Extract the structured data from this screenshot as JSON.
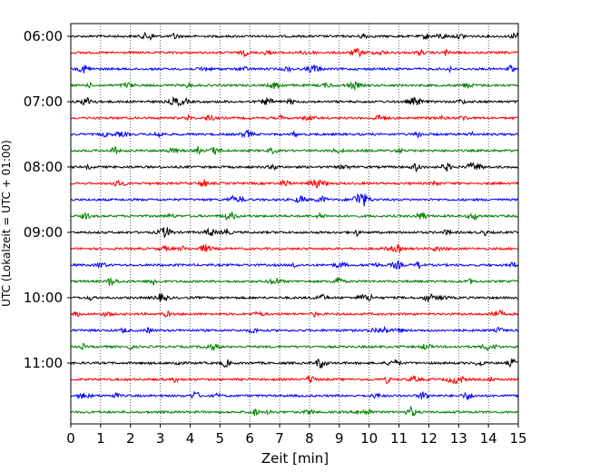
{
  "chart_data": {
    "type": "line",
    "title": "",
    "xlabel": "Zeit  [min]",
    "ylabel": "UTC (Lokalzeit = UTC + 01:00)",
    "xlim": [
      0,
      15
    ],
    "x_ticks": [
      0,
      1,
      2,
      3,
      4,
      5,
      6,
      7,
      8,
      9,
      10,
      11,
      12,
      13,
      14,
      15
    ],
    "x_grid": "dotted vertical lines at each minute",
    "trace_interval_min": 15,
    "traces": [
      {
        "start": "06:00",
        "color": "#000000"
      },
      {
        "start": "06:15",
        "color": "#ff0000"
      },
      {
        "start": "06:30",
        "color": "#0000ff"
      },
      {
        "start": "06:45",
        "color": "#008000"
      },
      {
        "start": "07:00",
        "color": "#000000"
      },
      {
        "start": "07:15",
        "color": "#ff0000"
      },
      {
        "start": "07:30",
        "color": "#0000ff"
      },
      {
        "start": "07:45",
        "color": "#008000"
      },
      {
        "start": "08:00",
        "color": "#000000"
      },
      {
        "start": "08:15",
        "color": "#ff0000"
      },
      {
        "start": "08:30",
        "color": "#0000ff"
      },
      {
        "start": "08:45",
        "color": "#008000"
      },
      {
        "start": "09:00",
        "color": "#000000"
      },
      {
        "start": "09:15",
        "color": "#ff0000"
      },
      {
        "start": "09:30",
        "color": "#0000ff"
      },
      {
        "start": "09:45",
        "color": "#008000"
      },
      {
        "start": "10:00",
        "color": "#000000"
      },
      {
        "start": "10:15",
        "color": "#ff0000"
      },
      {
        "start": "10:30",
        "color": "#0000ff"
      },
      {
        "start": "10:45",
        "color": "#008000"
      },
      {
        "start": "11:00",
        "color": "#000000"
      },
      {
        "start": "11:15",
        "color": "#ff0000"
      },
      {
        "start": "11:30",
        "color": "#0000ff"
      },
      {
        "start": "11:45",
        "color": "#008000"
      }
    ],
    "y_tick_labels": [
      "06:00",
      "07:00",
      "08:00",
      "09:00",
      "10:00",
      "11:00"
    ]
  }
}
